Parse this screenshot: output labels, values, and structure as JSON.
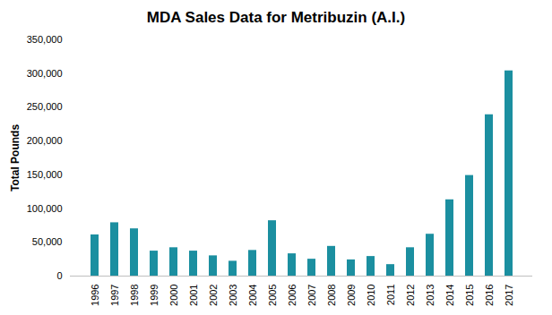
{
  "chart_data": {
    "type": "bar",
    "title": "MDA Sales Data for Metribuzin (A.I.)",
    "y_label": "Total Pounds",
    "categories": [
      "1996",
      "1997",
      "1998",
      "1999",
      "2000",
      "2001",
      "2002",
      "2003",
      "2004",
      "2005",
      "2006",
      "2007",
      "2008",
      "2009",
      "2010",
      "2011",
      "2012",
      "2013",
      "2014",
      "2015",
      "2016",
      "2017"
    ],
    "values": [
      61000,
      79000,
      70000,
      37000,
      42000,
      37000,
      30000,
      22000,
      38000,
      82000,
      33000,
      25000,
      44000,
      24000,
      29000,
      17000,
      42000,
      62000,
      113000,
      149000,
      239000,
      304000
    ],
    "color": "#1b8fa0",
    "ylim": [
      0,
      350000
    ],
    "yticks": [
      0,
      {
        "value": 50000,
        "label": "50,000"
      },
      {
        "value": 100000,
        "label": "100,000"
      },
      {
        "value": 150000,
        "label": "150,000"
      },
      {
        "value": 200000,
        "label": "200,000"
      },
      {
        "value": 250000,
        "label": "250,000"
      },
      {
        "value": 300000,
        "label": "300,000"
      },
      {
        "value": 350000,
        "label": "350,000"
      }
    ],
    "grid": false
  }
}
